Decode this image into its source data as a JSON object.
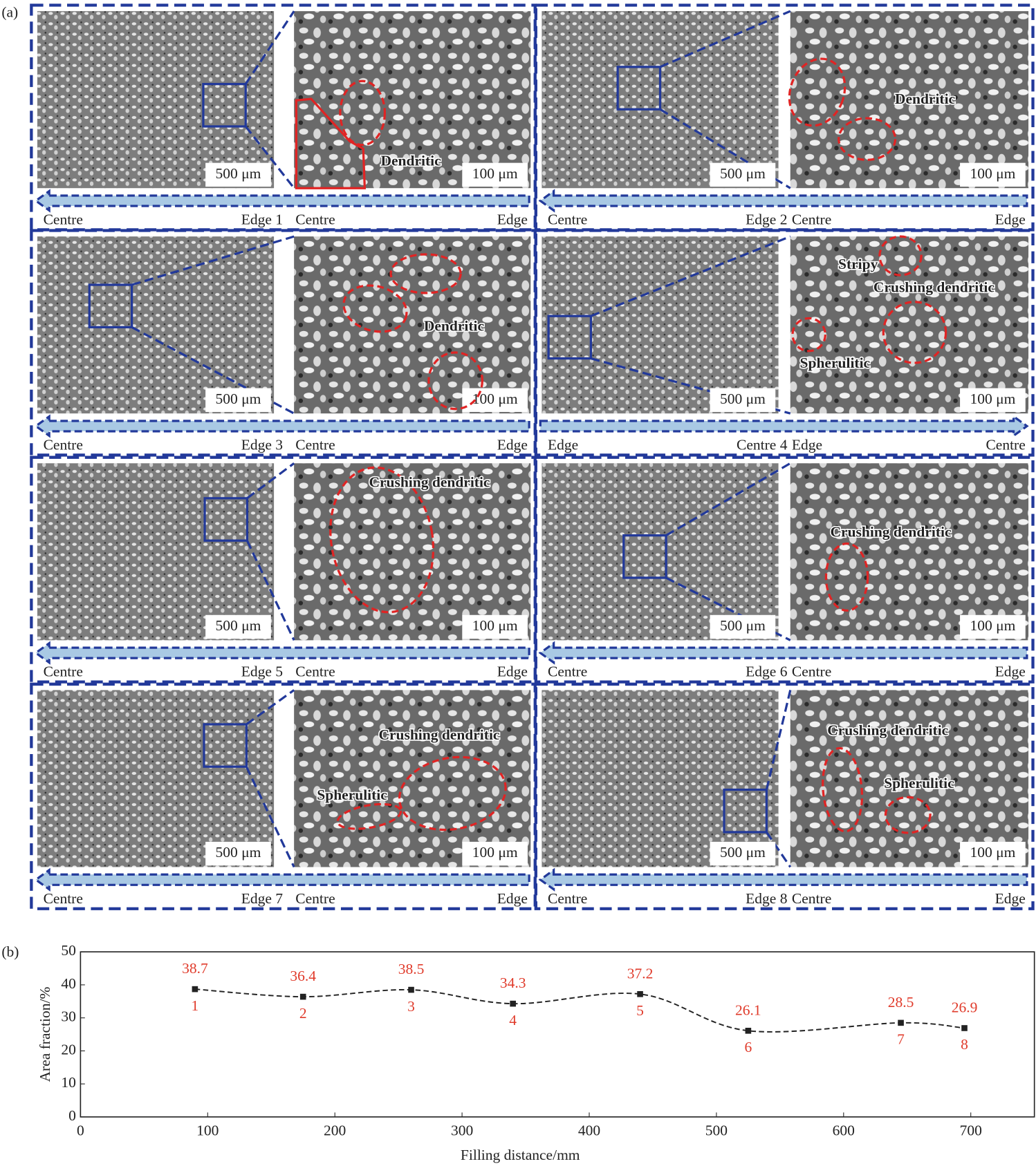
{
  "figure_labels": [
    "(a)",
    "(b)"
  ],
  "panels": [
    {
      "labels": [
        "Centre",
        "Edge 1",
        "Centre",
        "Edge"
      ],
      "scale_bars": [
        "500 μm",
        "100 μm"
      ],
      "annotations": [
        "Dendritic"
      ]
    },
    {
      "labels": [
        "Centre",
        "Edge 2",
        "Centre",
        "Edge"
      ],
      "scale_bars": [
        "500 μm",
        "100 μm"
      ],
      "annotations": [
        "Dendritic"
      ]
    },
    {
      "labels": [
        "Centre",
        "Edge 3",
        "Centre",
        "Edge"
      ],
      "scale_bars": [
        "500 μm",
        "100 μm"
      ],
      "annotations": [
        "Dendritic"
      ]
    },
    {
      "labels": [
        "Edge",
        "Centre 4",
        "Edge",
        "Centre"
      ],
      "scale_bars": [
        "500 μm",
        "100 μm"
      ],
      "annotations": [
        "Stripy",
        "Crushing dendritic",
        "Spherulitic"
      ]
    },
    {
      "labels": [
        "Centre",
        "Edge 5",
        "Centre",
        "Edge"
      ],
      "scale_bars": [
        "500 μm",
        "100 μm"
      ],
      "annotations": [
        "Crushing dendritic"
      ]
    },
    {
      "labels": [
        "Centre",
        "Edge 6",
        "Centre",
        "Edge"
      ],
      "scale_bars": [
        "500 μm",
        "100 μm"
      ],
      "annotations": [
        "Crushing dendritic"
      ]
    },
    {
      "labels": [
        "Centre",
        "Edge 7",
        "Centre",
        "Edge"
      ],
      "scale_bars": [
        "500 μm",
        "100 μm"
      ],
      "annotations": [
        "Crushing dendritic",
        "Spherulitic"
      ]
    },
    {
      "labels": [
        "Centre",
        "Edge 8",
        "Centre",
        "Edge"
      ],
      "scale_bars": [
        "500 μm",
        "100 μm"
      ],
      "annotations": [
        "Crushing dendritic",
        "Spherulitic"
      ]
    }
  ],
  "chart_data": {
    "type": "line",
    "x": [
      90,
      175,
      260,
      340,
      440,
      525,
      645,
      695
    ],
    "series": [
      {
        "name": "Area fraction",
        "color": "#222222",
        "values": [
          38.7,
          36.4,
          38.5,
          34.3,
          37.2,
          26.1,
          28.5,
          26.9
        ]
      }
    ],
    "point_labels": [
      "1",
      "2",
      "3",
      "4",
      "5",
      "6",
      "7",
      "8"
    ],
    "label_color": "#e03a2a",
    "xlabel": "Filling distance/mm",
    "ylabel": "Area fraction/%",
    "xlim": [
      0,
      750
    ],
    "ylim": [
      0,
      50
    ],
    "xticks": [
      0,
      100,
      200,
      300,
      400,
      500,
      600,
      700
    ],
    "yticks": [
      0,
      10,
      20,
      30,
      40,
      50
    ]
  }
}
